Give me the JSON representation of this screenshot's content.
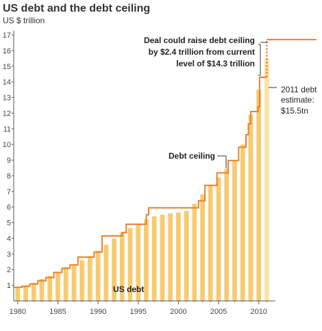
{
  "chart_data": {
    "type": "bar",
    "title": "US debt and the debt ceiling",
    "subtitle": "US $ trillion",
    "xlim": [
      1979.5,
      2011.9
    ],
    "ylim": [
      0,
      17
    ],
    "x_ticks": [
      1980,
      1985,
      1990,
      1995,
      2000,
      2005,
      2010
    ],
    "y_ticks": [
      1,
      2,
      3,
      4,
      5,
      6,
      7,
      8,
      9,
      10,
      11,
      12,
      13,
      14,
      15,
      16,
      17
    ],
    "grid": false,
    "bar_color": "#f7cb6e",
    "estimate_bar_color": "#fbe3a6",
    "line_color": "#e8802f",
    "series": [
      {
        "name": "US debt",
        "type": "bar",
        "x": [
          1980,
          1981,
          1982,
          1983,
          1984,
          1985,
          1986,
          1987,
          1988,
          1989,
          1990,
          1991,
          1992,
          1993,
          1994,
          1995,
          1996,
          1997,
          1998,
          1999,
          2000,
          2001,
          2002,
          2003,
          2004,
          2005,
          2006,
          2007,
          2008,
          2009,
          2010,
          2011
        ],
        "values": [
          0.9,
          1.0,
          1.15,
          1.4,
          1.6,
          1.85,
          2.15,
          2.35,
          2.6,
          2.85,
          3.2,
          3.6,
          4.0,
          4.35,
          4.65,
          4.95,
          5.2,
          5.4,
          5.5,
          5.6,
          5.65,
          5.75,
          6.2,
          6.8,
          7.35,
          7.9,
          8.45,
          9.0,
          10.0,
          11.9,
          13.5,
          15.5
        ],
        "estimate_x": 2011
      },
      {
        "name": "Debt ceiling",
        "type": "step-line",
        "points": [
          [
            1979.5,
            0.87
          ],
          [
            1980.5,
            0.93
          ],
          [
            1981.5,
            1.08
          ],
          [
            1982.5,
            1.29
          ],
          [
            1983.5,
            1.49
          ],
          [
            1984.5,
            1.82
          ],
          [
            1985.5,
            2.08
          ],
          [
            1986.5,
            2.3
          ],
          [
            1987.5,
            2.8
          ],
          [
            1989.5,
            3.12
          ],
          [
            1990.5,
            4.15
          ],
          [
            1993.0,
            4.37
          ],
          [
            1993.5,
            4.9
          ],
          [
            1996.0,
            5.5
          ],
          [
            1996.3,
            5.95
          ],
          [
            2002.5,
            6.4
          ],
          [
            2003.3,
            7.38
          ],
          [
            2004.8,
            8.18
          ],
          [
            2006.2,
            8.97
          ],
          [
            2007.5,
            9.82
          ],
          [
            2008.4,
            10.62
          ],
          [
            2008.7,
            11.32
          ],
          [
            2009.0,
            12.1
          ],
          [
            2009.9,
            12.4
          ],
          [
            2010.1,
            14.29
          ],
          [
            2011.0,
            14.29
          ]
        ],
        "extension": [
          [
            2011.0,
            14.29
          ],
          [
            2011.0,
            16.7
          ],
          [
            2011.9,
            16.7
          ]
        ]
      }
    ],
    "annotations": {
      "deal": [
        "Deal could raise debt ceiling",
        "by $2.4 trillion from current",
        "level of $14.3 trillion"
      ],
      "estimate": [
        "2011 debt",
        "estimate:",
        "$15.5tn"
      ],
      "ceiling_label": "Debt ceiling",
      "debt_label": "US debt"
    }
  }
}
